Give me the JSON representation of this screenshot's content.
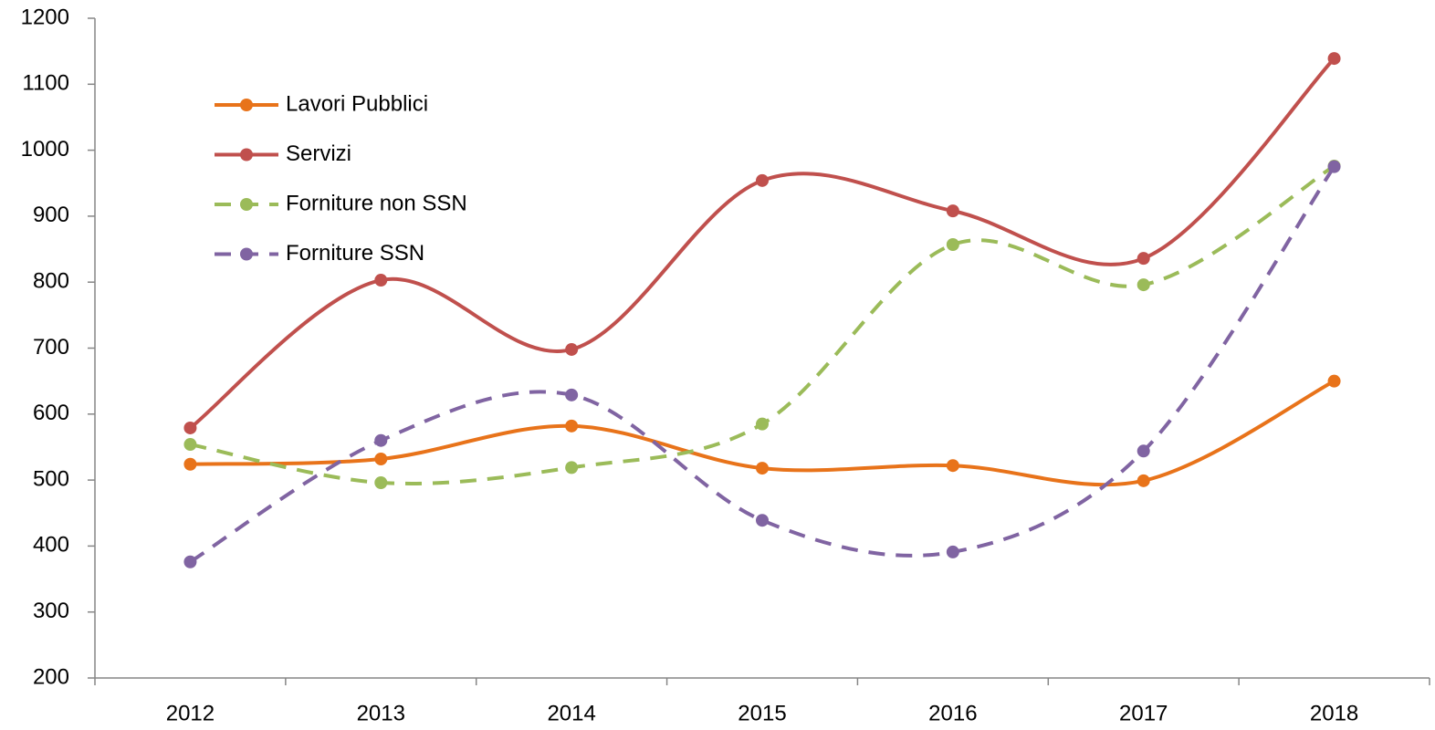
{
  "chart_data": {
    "type": "line",
    "categories": [
      "2012",
      "2013",
      "2014",
      "2015",
      "2016",
      "2017",
      "2018"
    ],
    "series": [
      {
        "name": "Lavori Pubblici",
        "color": "#e8731a",
        "style": "solid",
        "values": [
          524,
          532,
          582,
          518,
          522,
          499,
          650
        ]
      },
      {
        "name": "Servizi",
        "color": "#c0504d",
        "style": "solid",
        "values": [
          579,
          803,
          698,
          954,
          908,
          836,
          1139
        ]
      },
      {
        "name": "Forniture non SSN",
        "color": "#9bbb59",
        "style": "dashed",
        "values": [
          554,
          496,
          519,
          585,
          857,
          796,
          976
        ]
      },
      {
        "name": "Forniture SSN",
        "color": "#8064a2",
        "style": "dashed",
        "values": [
          376,
          560,
          629,
          439,
          391,
          544,
          975
        ]
      }
    ],
    "ylim": [
      200,
      1200
    ],
    "yticks": [
      200,
      300,
      400,
      500,
      600,
      700,
      800,
      900,
      1000,
      1100,
      1200
    ],
    "grid": false,
    "smooth": true,
    "legend": "upper left"
  }
}
